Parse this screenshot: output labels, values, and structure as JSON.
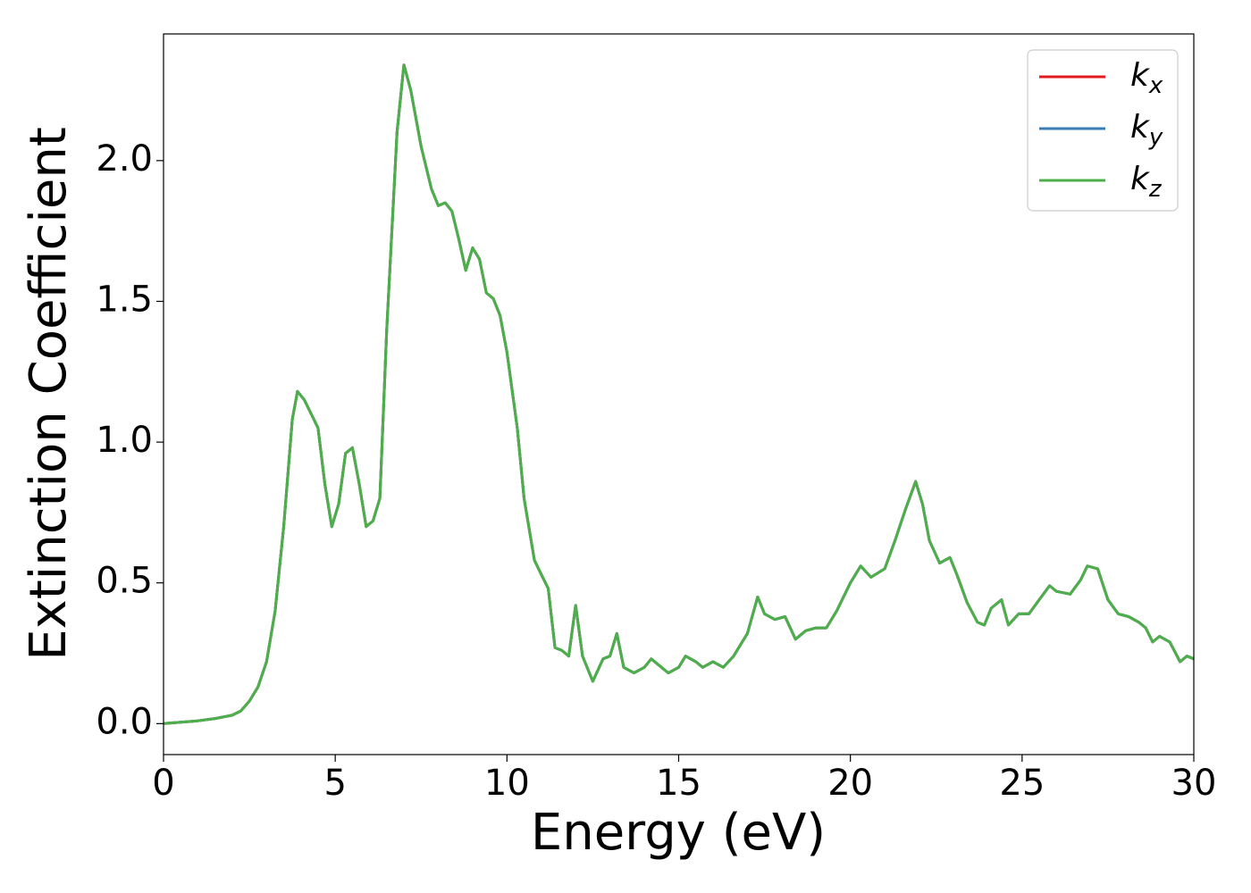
{
  "chart_data": {
    "type": "line",
    "xlabel": "Energy (eV)",
    "ylabel": "Extinction Coefficient",
    "xlim": [
      0,
      30
    ],
    "ylim": [
      -0.11,
      2.45
    ],
    "xticks": [
      0,
      5,
      10,
      15,
      20,
      25,
      30
    ],
    "yticks": [
      {
        "value": 0,
        "label": "0.0"
      },
      0.5,
      {
        "value": 1,
        "label": "1.0"
      },
      1.5,
      {
        "value": 2,
        "label": "2.0"
      }
    ],
    "legend": "upper right",
    "x": [
      0,
      0.5,
      1,
      1.5,
      2,
      2.25,
      2.5,
      2.75,
      3,
      3.25,
      3.5,
      3.75,
      3.9,
      4.1,
      4.3,
      4.5,
      4.7,
      4.9,
      5.1,
      5.3,
      5.5,
      5.7,
      5.9,
      6.1,
      6.3,
      6.5,
      6.8,
      7.0,
      7.2,
      7.5,
      7.8,
      8.0,
      8.2,
      8.4,
      8.6,
      8.8,
      9.0,
      9.2,
      9.4,
      9.6,
      9.8,
      10.0,
      10.3,
      10.5,
      10.8,
      11.0,
      11.2,
      11.4,
      11.6,
      11.8,
      12.0,
      12.2,
      12.5,
      12.8,
      13.0,
      13.2,
      13.4,
      13.7,
      14.0,
      14.2,
      14.5,
      14.7,
      15.0,
      15.2,
      15.5,
      15.7,
      16.0,
      16.3,
      16.6,
      17.0,
      17.3,
      17.5,
      17.8,
      18.1,
      18.4,
      18.7,
      19.0,
      19.3,
      19.6,
      20.0,
      20.3,
      20.6,
      21.0,
      21.3,
      21.6,
      21.9,
      22.1,
      22.3,
      22.6,
      22.9,
      23.1,
      23.4,
      23.7,
      23.9,
      24.1,
      24.4,
      24.6,
      24.9,
      25.2,
      25.5,
      25.8,
      26.0,
      26.4,
      26.7,
      26.9,
      27.2,
      27.5,
      27.8,
      28.1,
      28.4,
      28.6,
      28.8,
      29.0,
      29.3,
      29.6,
      29.8,
      30
    ],
    "series": [
      {
        "name": "k_x",
        "color": "#e41a1c",
        "values": [
          0,
          0.005,
          0.01,
          0.018,
          0.03,
          0.045,
          0.08,
          0.13,
          0.22,
          0.4,
          0.7,
          1.08,
          1.18,
          1.15,
          1.1,
          1.05,
          0.85,
          0.7,
          0.78,
          0.96,
          0.98,
          0.85,
          0.7,
          0.72,
          0.8,
          1.4,
          2.1,
          2.34,
          2.25,
          2.05,
          1.9,
          1.84,
          1.85,
          1.82,
          1.72,
          1.61,
          1.69,
          1.65,
          1.53,
          1.51,
          1.45,
          1.32,
          1.05,
          0.8,
          0.58,
          0.53,
          0.48,
          0.27,
          0.26,
          0.24,
          0.42,
          0.24,
          0.15,
          0.23,
          0.24,
          0.32,
          0.2,
          0.18,
          0.2,
          0.23,
          0.2,
          0.18,
          0.2,
          0.24,
          0.22,
          0.2,
          0.22,
          0.2,
          0.24,
          0.32,
          0.45,
          0.39,
          0.37,
          0.38,
          0.3,
          0.33,
          0.34,
          0.34,
          0.4,
          0.5,
          0.56,
          0.52,
          0.55,
          0.65,
          0.76,
          0.86,
          0.78,
          0.65,
          0.57,
          0.59,
          0.53,
          0.43,
          0.36,
          0.35,
          0.41,
          0.44,
          0.35,
          0.39,
          0.39,
          0.44,
          0.49,
          0.47,
          0.46,
          0.51,
          0.56,
          0.55,
          0.44,
          0.39,
          0.38,
          0.36,
          0.34,
          0.29,
          0.31,
          0.29,
          0.22,
          0.24,
          0.23
        ]
      },
      {
        "name": "k_y",
        "color": "#377eb8",
        "values": [
          0,
          0.005,
          0.01,
          0.018,
          0.03,
          0.045,
          0.08,
          0.13,
          0.22,
          0.4,
          0.7,
          1.08,
          1.18,
          1.15,
          1.1,
          1.05,
          0.85,
          0.7,
          0.78,
          0.96,
          0.98,
          0.85,
          0.7,
          0.72,
          0.8,
          1.4,
          2.1,
          2.34,
          2.25,
          2.05,
          1.9,
          1.84,
          1.85,
          1.82,
          1.72,
          1.61,
          1.69,
          1.65,
          1.53,
          1.51,
          1.45,
          1.32,
          1.05,
          0.8,
          0.58,
          0.53,
          0.48,
          0.27,
          0.26,
          0.24,
          0.42,
          0.24,
          0.15,
          0.23,
          0.24,
          0.32,
          0.2,
          0.18,
          0.2,
          0.23,
          0.2,
          0.18,
          0.2,
          0.24,
          0.22,
          0.2,
          0.22,
          0.2,
          0.24,
          0.32,
          0.45,
          0.39,
          0.37,
          0.38,
          0.3,
          0.33,
          0.34,
          0.34,
          0.4,
          0.5,
          0.56,
          0.52,
          0.55,
          0.65,
          0.76,
          0.86,
          0.78,
          0.65,
          0.57,
          0.59,
          0.53,
          0.43,
          0.36,
          0.35,
          0.41,
          0.44,
          0.35,
          0.39,
          0.39,
          0.44,
          0.49,
          0.47,
          0.46,
          0.51,
          0.56,
          0.55,
          0.44,
          0.39,
          0.38,
          0.36,
          0.34,
          0.29,
          0.31,
          0.29,
          0.22,
          0.24,
          0.23
        ]
      },
      {
        "name": "k_z",
        "color": "#4daf4a",
        "values": [
          0,
          0.005,
          0.01,
          0.018,
          0.03,
          0.045,
          0.08,
          0.13,
          0.22,
          0.4,
          0.7,
          1.08,
          1.18,
          1.15,
          1.1,
          1.05,
          0.85,
          0.7,
          0.78,
          0.96,
          0.98,
          0.85,
          0.7,
          0.72,
          0.8,
          1.4,
          2.1,
          2.34,
          2.25,
          2.05,
          1.9,
          1.84,
          1.85,
          1.82,
          1.72,
          1.61,
          1.69,
          1.65,
          1.53,
          1.51,
          1.45,
          1.32,
          1.05,
          0.8,
          0.58,
          0.53,
          0.48,
          0.27,
          0.26,
          0.24,
          0.42,
          0.24,
          0.15,
          0.23,
          0.24,
          0.32,
          0.2,
          0.18,
          0.2,
          0.23,
          0.2,
          0.18,
          0.2,
          0.24,
          0.22,
          0.2,
          0.22,
          0.2,
          0.24,
          0.32,
          0.45,
          0.39,
          0.37,
          0.38,
          0.3,
          0.33,
          0.34,
          0.34,
          0.4,
          0.5,
          0.56,
          0.52,
          0.55,
          0.65,
          0.76,
          0.86,
          0.78,
          0.65,
          0.57,
          0.59,
          0.53,
          0.43,
          0.36,
          0.35,
          0.41,
          0.44,
          0.35,
          0.39,
          0.39,
          0.44,
          0.49,
          0.47,
          0.46,
          0.51,
          0.56,
          0.55,
          0.44,
          0.39,
          0.38,
          0.36,
          0.34,
          0.29,
          0.31,
          0.29,
          0.22,
          0.24,
          0.23
        ]
      }
    ]
  }
}
